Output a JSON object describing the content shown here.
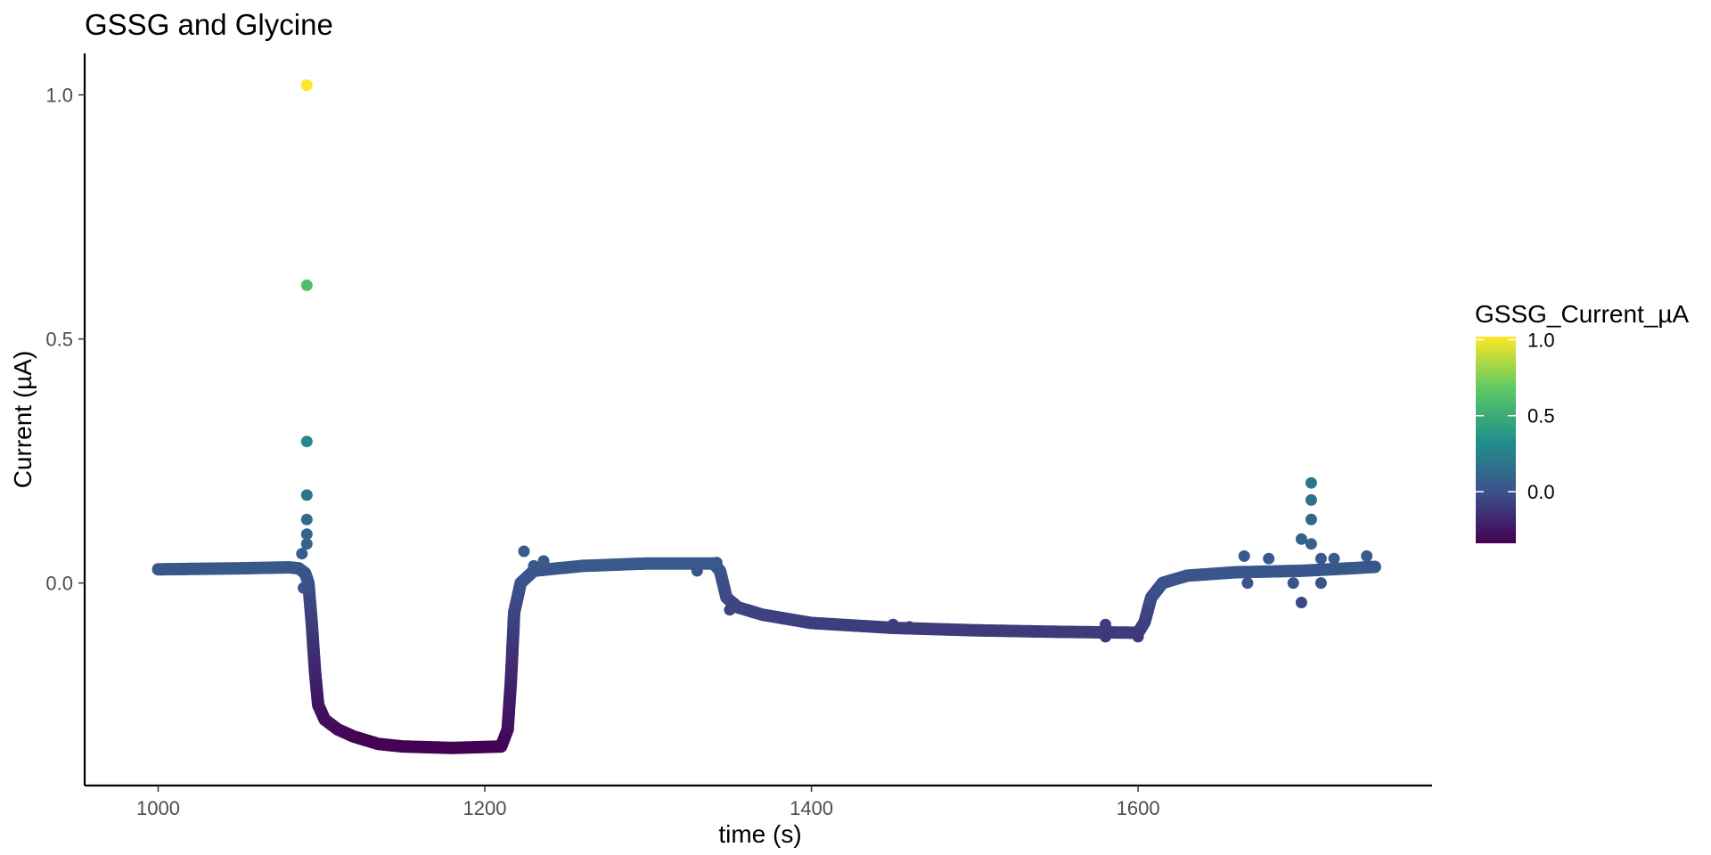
{
  "chart_data": {
    "type": "scatter",
    "title": "GSSG and Glycine",
    "xlabel": "time (s)",
    "ylabel": "Current (µA)",
    "xlim": [
      955,
      1780
    ],
    "ylim": [
      -0.415,
      1.085
    ],
    "x_ticks": [
      1000,
      1200,
      1400,
      1600
    ],
    "x_tick_labels": [
      "1000",
      "1200",
      "1400",
      "1600"
    ],
    "y_ticks": [
      0.0,
      0.5,
      1.0
    ],
    "y_tick_labels": [
      "0.0",
      "0.5",
      "1.0"
    ],
    "grid": false,
    "legend": {
      "title": "GSSG_Current_µA",
      "placement": "right",
      "type": "colorbar",
      "range": [
        -0.34,
        1.02
      ],
      "ticks": [
        0.0,
        0.5,
        1.0
      ],
      "tick_labels": [
        "0.0",
        "0.5",
        "1.0"
      ],
      "palette": [
        "#440154",
        "#3b528b",
        "#21918c",
        "#5ec962",
        "#fde725"
      ]
    },
    "series": [
      {
        "color_mapped_to": "y",
        "trace": [
          [
            1000,
            0.028
          ],
          [
            1050,
            0.03
          ],
          [
            1080,
            0.032
          ],
          [
            1086,
            0.03
          ],
          [
            1090,
            0.02
          ],
          [
            1092,
            0.0
          ],
          [
            1094,
            -0.08
          ],
          [
            1096,
            -0.18
          ],
          [
            1098,
            -0.25
          ],
          [
            1102,
            -0.28
          ],
          [
            1110,
            -0.3
          ],
          [
            1120,
            -0.315
          ],
          [
            1135,
            -0.33
          ],
          [
            1150,
            -0.335
          ],
          [
            1180,
            -0.338
          ],
          [
            1210,
            -0.335
          ],
          [
            1214,
            -0.3
          ],
          [
            1216,
            -0.2
          ],
          [
            1218,
            -0.06
          ],
          [
            1222,
            0.0
          ],
          [
            1230,
            0.025
          ],
          [
            1260,
            0.035
          ],
          [
            1300,
            0.04
          ],
          [
            1340,
            0.04
          ],
          [
            1344,
            0.025
          ],
          [
            1348,
            -0.03
          ],
          [
            1355,
            -0.05
          ],
          [
            1370,
            -0.065
          ],
          [
            1400,
            -0.082
          ],
          [
            1450,
            -0.092
          ],
          [
            1500,
            -0.097
          ],
          [
            1550,
            -0.1
          ],
          [
            1600,
            -0.102
          ],
          [
            1604,
            -0.08
          ],
          [
            1608,
            -0.03
          ],
          [
            1615,
            0.0
          ],
          [
            1630,
            0.015
          ],
          [
            1660,
            0.022
          ],
          [
            1700,
            0.025
          ],
          [
            1730,
            0.03
          ],
          [
            1745,
            0.033
          ]
        ],
        "points": [
          [
            1091,
            1.02
          ],
          [
            1091,
            0.61
          ],
          [
            1091,
            0.29
          ],
          [
            1091,
            0.18
          ],
          [
            1091,
            0.13
          ],
          [
            1091,
            0.1
          ],
          [
            1091,
            0.08
          ],
          [
            1088,
            0.06
          ],
          [
            1089,
            -0.01
          ],
          [
            1224,
            0.065
          ],
          [
            1230,
            0.035
          ],
          [
            1236,
            0.045
          ],
          [
            1330,
            0.025
          ],
          [
            1336,
            0.04
          ],
          [
            1342,
            0.042
          ],
          [
            1350,
            -0.055
          ],
          [
            1450,
            -0.085
          ],
          [
            1460,
            -0.09
          ],
          [
            1580,
            -0.085
          ],
          [
            1580,
            -0.11
          ],
          [
            1600,
            -0.11
          ],
          [
            1706,
            0.205
          ],
          [
            1706,
            0.17
          ],
          [
            1706,
            0.13
          ],
          [
            1706,
            0.08
          ],
          [
            1700,
            0.09
          ],
          [
            1700,
            -0.04
          ],
          [
            1695,
            0.0
          ],
          [
            1712,
            0.0
          ],
          [
            1712,
            0.05
          ],
          [
            1720,
            0.05
          ],
          [
            1740,
            0.055
          ],
          [
            1680,
            0.05
          ],
          [
            1665,
            0.055
          ],
          [
            1667,
            0.0
          ]
        ]
      }
    ]
  }
}
